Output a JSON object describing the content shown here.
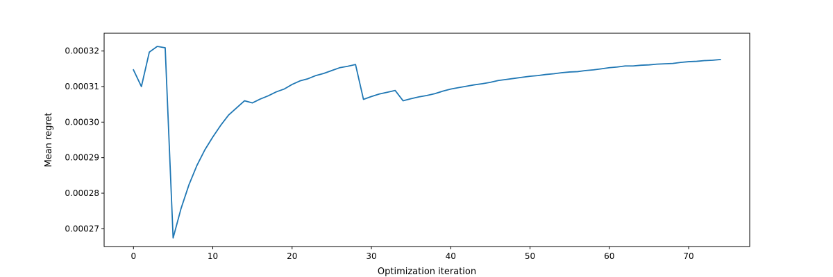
{
  "chart_data": {
    "type": "line",
    "title": "",
    "xlabel": "Optimization iteration",
    "ylabel": "Mean regret",
    "xlim": [
      -3.7,
      77.7
    ],
    "ylim": [
      0.000265,
      0.000325
    ],
    "x_ticks": [
      0,
      10,
      20,
      30,
      40,
      50,
      60,
      70
    ],
    "y_ticks": [
      0.00027,
      0.00028,
      0.00029,
      0.0003,
      0.00031,
      0.00032
    ],
    "y_tick_labels": [
      "0.00027",
      "0.00028",
      "0.00029",
      "0.00030",
      "0.00031",
      "0.00032"
    ],
    "grid": false,
    "legend": "none",
    "series": [
      {
        "color": "#1f77b4",
        "x": [
          0,
          1,
          2,
          3,
          4,
          5,
          6,
          7,
          8,
          9,
          10,
          11,
          12,
          13,
          14,
          15,
          16,
          17,
          18,
          19,
          20,
          21,
          22,
          23,
          24,
          25,
          26,
          27,
          28,
          29,
          30,
          31,
          32,
          33,
          34,
          35,
          36,
          37,
          38,
          39,
          40,
          41,
          42,
          43,
          44,
          45,
          46,
          47,
          48,
          49,
          50,
          51,
          52,
          53,
          54,
          55,
          56,
          57,
          58,
          59,
          60,
          61,
          62,
          63,
          64,
          65,
          66,
          67,
          68,
          69,
          70,
          71,
          72,
          73,
          74
        ],
        "y": [
          0.0003147,
          0.00031,
          0.0003197,
          0.0003213,
          0.0003209,
          0.0002674,
          0.0002757,
          0.0002824,
          0.0002878,
          0.0002922,
          0.0002958,
          0.0002991,
          0.000302,
          0.000304,
          0.000306,
          0.0003054,
          0.0003065,
          0.0003074,
          0.0003085,
          0.0003093,
          0.0003106,
          0.0003116,
          0.0003122,
          0.0003131,
          0.0003137,
          0.0003145,
          0.0003153,
          0.0003157,
          0.0003162,
          0.0003064,
          0.0003072,
          0.0003079,
          0.0003084,
          0.0003089,
          0.000306,
          0.0003066,
          0.0003071,
          0.0003075,
          0.000308,
          0.0003087,
          0.0003093,
          0.0003097,
          0.0003101,
          0.0003105,
          0.0003108,
          0.0003112,
          0.0003117,
          0.000312,
          0.0003123,
          0.0003126,
          0.0003129,
          0.0003131,
          0.0003134,
          0.0003136,
          0.0003139,
          0.0003141,
          0.0003142,
          0.0003145,
          0.0003147,
          0.000315,
          0.0003153,
          0.0003155,
          0.0003158,
          0.0003158,
          0.000316,
          0.0003161,
          0.0003163,
          0.0003164,
          0.0003165,
          0.0003168,
          0.000317,
          0.0003171,
          0.0003173,
          0.0003174,
          0.0003176
        ]
      }
    ]
  }
}
